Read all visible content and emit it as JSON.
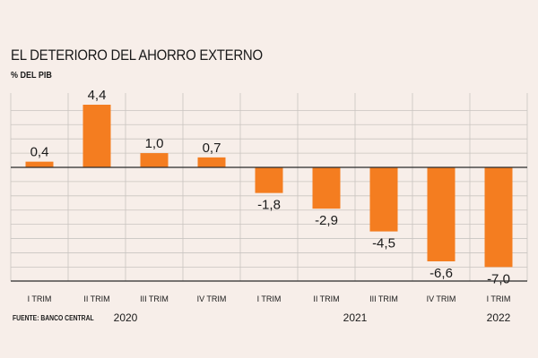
{
  "title": "EL DETERIORO DEL AHORRO EXTERNO",
  "subtitle": "% DEL PIB",
  "source": "FUENTE: BANCO CENTRAL",
  "colors": {
    "bar": "#f47d20",
    "grid": "#c9c4c0",
    "axis": "#2a2a2a",
    "text": "#1a1a1a",
    "background": "#f7eee9"
  },
  "chart_data": {
    "type": "bar",
    "categories": [
      "I TRIM",
      "II TRIM",
      "III TRIM",
      "IV TRIM",
      "I TRIM",
      "II TRIM",
      "III TRIM",
      "IV TRIM",
      "I TRIM"
    ],
    "values": [
      0.4,
      4.4,
      1.0,
      0.7,
      -1.8,
      -2.9,
      -4.5,
      -6.6,
      -7.0
    ],
    "value_labels": [
      "0,4",
      "4,4",
      "1,0",
      "0,7",
      "-1,8",
      "-2,9",
      "-4,5",
      "-6,6",
      "-7,0"
    ],
    "year_labels": [
      {
        "label": "2020",
        "category_index": 1.5
      },
      {
        "label": "2021",
        "category_index": 5.5
      },
      {
        "label": "2022",
        "category_index": 8
      }
    ],
    "title": "EL DETERIORO DEL AHORRO EXTERNO",
    "ylabel": "% DEL PIB",
    "ylim": [
      -8.5,
      5
    ],
    "grid": true,
    "legend": "none"
  }
}
